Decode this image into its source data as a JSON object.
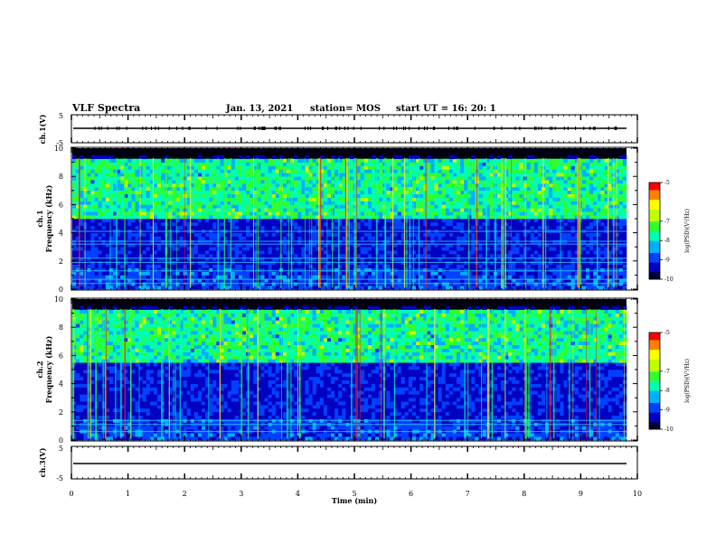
{
  "header": {
    "title": "VLF Spectra",
    "date": "Jan. 13, 2021",
    "station": "station= MOS",
    "start_time": "start  UT =   16: 20: 1"
  },
  "chart_data": [
    {
      "type": "line",
      "panel": "ch1-waveform",
      "ylabel": "ch.1(V)",
      "ylim": [
        -5,
        5
      ],
      "y_ticks": [
        "5",
        "-5"
      ],
      "x": [
        0,
        10
      ],
      "values": [
        0,
        0
      ]
    },
    {
      "type": "heatmap",
      "panel": "ch1-spectrogram",
      "ylabel": "ch.1\nFrequency (kHz)",
      "ylim": [
        0,
        10
      ],
      "y_ticks": [
        "0",
        "2",
        "4",
        "6",
        "8",
        "10"
      ],
      "xlim": [
        0,
        10
      ],
      "color_range": [
        -10,
        -5
      ],
      "colorbar_ticks": [
        "-5",
        "-7",
        "-8",
        "-9",
        "-10"
      ],
      "colorbar_label": "log(PSD)(V²/Hz)"
    },
    {
      "type": "heatmap",
      "panel": "ch2-spectrogram",
      "ylabel": "ch.2\nFrequency (kHz)",
      "ylim": [
        0,
        10
      ],
      "y_ticks": [
        "0",
        "2",
        "4",
        "6",
        "8",
        "10"
      ],
      "xlim": [
        0,
        10
      ],
      "color_range": [
        -10,
        -5
      ],
      "colorbar_ticks": [
        "-5",
        "-7",
        "-8",
        "-9",
        "-10"
      ],
      "colorbar_label": "log(PSD)(V²/Hz)"
    },
    {
      "type": "line",
      "panel": "ch3-waveform",
      "ylabel": "ch.3(V)",
      "ylim": [
        -5,
        5
      ],
      "y_ticks": [
        "5",
        "-5"
      ],
      "x": [
        0,
        10
      ],
      "values": [
        0,
        0
      ]
    }
  ],
  "x_axis": {
    "label": "Time (min)",
    "range": [
      0,
      10
    ],
    "ticks": [
      "0",
      "1",
      "2",
      "3",
      "4",
      "5",
      "6",
      "7",
      "8",
      "9",
      "10"
    ]
  },
  "colors": {
    "spectrogram_background": "#000010",
    "colormap": [
      "#000030",
      "#0000c0",
      "#0040ff",
      "#00b0ff",
      "#00ffb0",
      "#30ff30",
      "#c0ff00",
      "#ffff00",
      "#ff8000",
      "#ff0000"
    ]
  }
}
